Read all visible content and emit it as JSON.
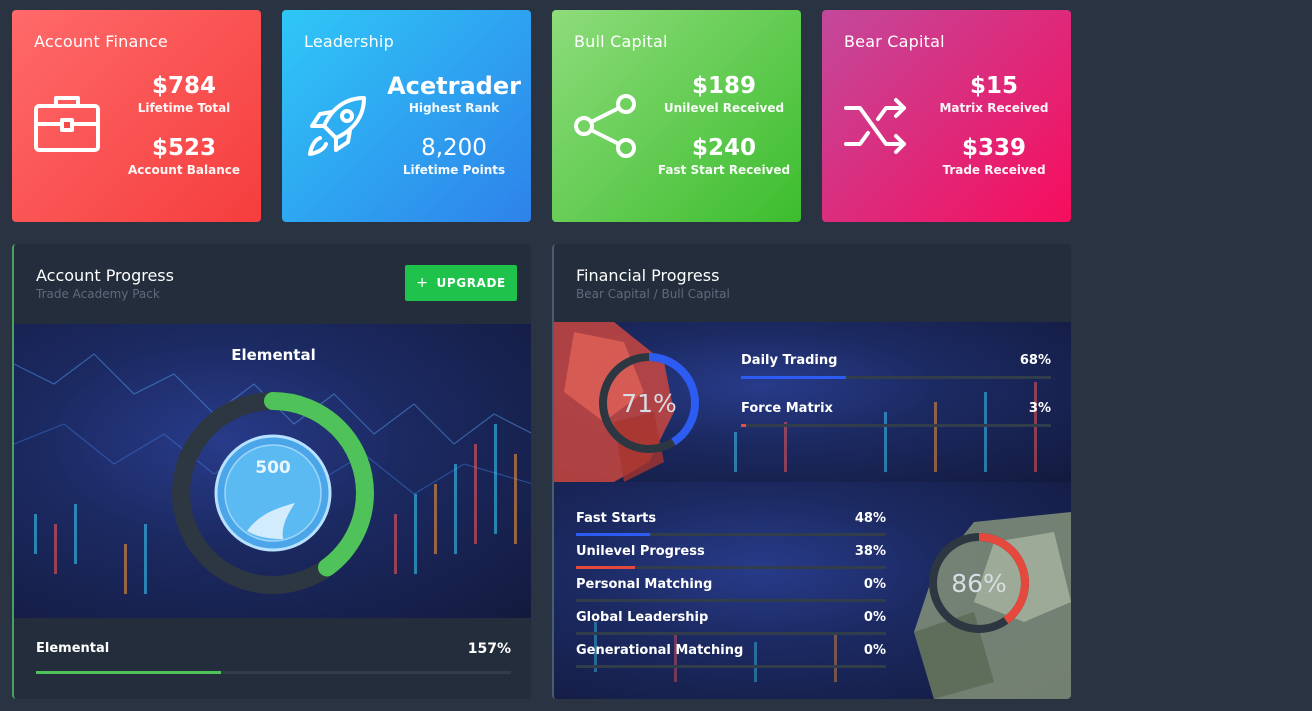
{
  "cards": {
    "account_finance": {
      "title": "Account Finance",
      "icon": "briefcase-icon",
      "stat1_value": "$784",
      "stat1_label": "Lifetime Total",
      "stat2_value": "$523",
      "stat2_label": "Account Balance",
      "color": "#f53d3d"
    },
    "leadership": {
      "title": "Leadership",
      "icon": "rocket-icon",
      "stat1_value": "Acetrader",
      "stat1_label": "Highest Rank",
      "stat2_value": "8,200",
      "stat2_label": "Lifetime Points",
      "color": "#2e82ea"
    },
    "bull_capital": {
      "title": "Bull Capital",
      "icon": "share-icon",
      "stat1_value": "$189",
      "stat1_label": "Unilevel Received",
      "stat2_value": "$240",
      "stat2_label": "Fast Start Received",
      "color": "#3cbd2e"
    },
    "bear_capital": {
      "title": "Bear Capital",
      "icon": "shuffle-icon",
      "stat1_value": "$15",
      "stat1_label": "Matrix Received",
      "stat2_value": "$339",
      "stat2_label": "Trade Received",
      "color": "#f70d5d"
    }
  },
  "account_progress": {
    "title": "Account Progress",
    "subtitle": "Trade Academy Pack",
    "upgrade_label": "UPGRADE",
    "upgrade_icon": "plus-icon",
    "stage_name": "Elemental",
    "badge_text": "500",
    "ring_fraction": 0.4,
    "ring_color": "#4fc35a",
    "footer_label": "Elemental",
    "footer_percent": "157%",
    "footer_fill_fraction": 0.39
  },
  "financial_progress": {
    "title": "Financial Progress",
    "subtitle": "Bear Capital / Bull Capital",
    "bear": {
      "ring_text": "71%",
      "ring_fraction": 0.41,
      "ring_color": "#2d5cf3",
      "items": [
        {
          "label": "Daily Trading",
          "percent": "68%",
          "fill": 0.34,
          "color": "#2d5cf3"
        },
        {
          "label": "Force Matrix",
          "percent": "3%",
          "fill": 0.015,
          "color": "#ea4b4b"
        }
      ]
    },
    "bull": {
      "ring_text": "86%",
      "ring_fraction": 0.4,
      "ring_color": "#e5483c",
      "items": [
        {
          "label": "Fast Starts",
          "percent": "48%",
          "fill": 0.24,
          "color": "#2d5cf3"
        },
        {
          "label": "Unilevel Progress",
          "percent": "38%",
          "fill": 0.19,
          "color": "#e5483c"
        },
        {
          "label": "Personal Matching",
          "percent": "0%",
          "fill": 0,
          "color": "#2d5cf3"
        },
        {
          "label": "Global Leadership",
          "percent": "0%",
          "fill": 0,
          "color": "#2d5cf3"
        },
        {
          "label": "Generational Matching",
          "percent": "0%",
          "fill": 0,
          "color": "#2d5cf3"
        }
      ]
    }
  }
}
